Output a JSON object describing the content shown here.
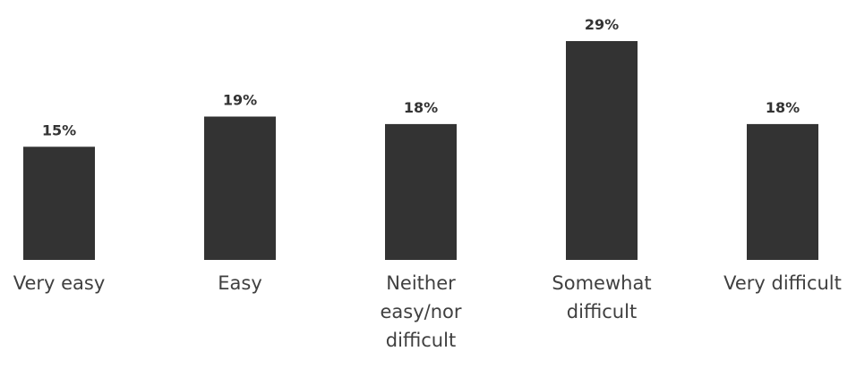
{
  "chart_data": {
    "type": "bar",
    "categories": [
      "Very easy",
      "Easy",
      "Neither easy/nor difficult",
      "Somewhat difficult",
      "Very difficult"
    ],
    "category_label_lines": [
      [
        "Very easy"
      ],
      [
        "Easy"
      ],
      [
        "Neither",
        "easy/nor",
        "difficult"
      ],
      [
        "Somewhat",
        "difficult"
      ],
      [
        "Very difficult"
      ]
    ],
    "values": [
      15,
      19,
      18,
      29,
      18
    ],
    "data_labels": [
      "15%",
      "19%",
      "18%",
      "29%",
      "18%"
    ],
    "unit": "%",
    "title": "",
    "xlabel": "",
    "ylabel": "",
    "ylim": [
      0,
      29
    ],
    "grid": false,
    "legend": "none",
    "bar_color": "#333333"
  }
}
